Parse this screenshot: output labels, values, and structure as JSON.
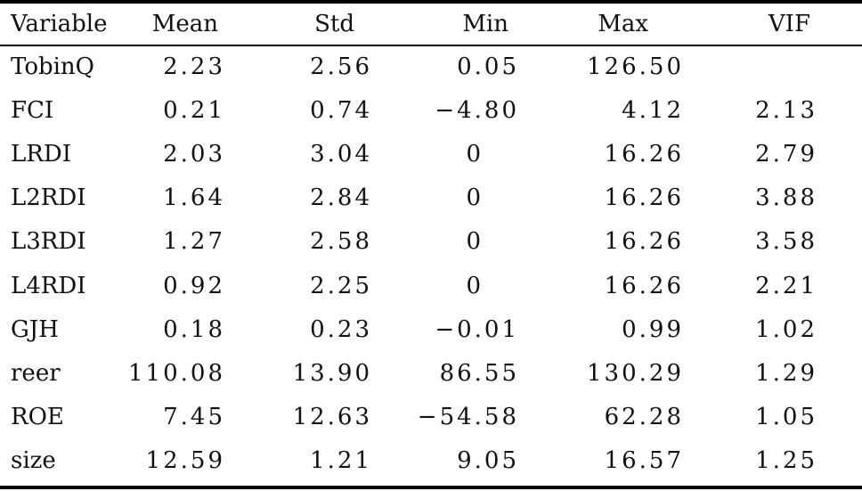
{
  "table": {
    "headers": [
      "Variable",
      "Mean",
      "Std",
      "Min",
      "Max",
      "VIF"
    ],
    "rows": [
      {
        "variable": "TobinQ",
        "mean": "2.23",
        "std": "2.56",
        "min": "0.05",
        "max": "126.50",
        "vif": ""
      },
      {
        "variable": "FCI",
        "mean": "0.21",
        "std": "0.74",
        "min": "−4.80",
        "max": "4.12",
        "vif": "2.13"
      },
      {
        "variable": "LRDI",
        "mean": "2.03",
        "std": "3.04",
        "min": "0",
        "max": "16.26",
        "vif": "2.79"
      },
      {
        "variable": "L2RDI",
        "mean": "1.64",
        "std": "2.84",
        "min": "0",
        "max": "16.26",
        "vif": "3.88"
      },
      {
        "variable": "L3RDI",
        "mean": "1.27",
        "std": "2.58",
        "min": "0",
        "max": "16.26",
        "vif": "3.58"
      },
      {
        "variable": "L4RDI",
        "mean": "0.92",
        "std": "2.25",
        "min": "0",
        "max": "16.26",
        "vif": "2.21"
      },
      {
        "variable": "GJH",
        "mean": "0.18",
        "std": "0.23",
        "min": "−0.01",
        "max": "0.99",
        "vif": "1.02"
      },
      {
        "variable": "reer",
        "mean": "110.08",
        "std": "13.90",
        "min": "86.55",
        "max": "130.29",
        "vif": "1.29"
      },
      {
        "variable": "ROE",
        "mean": "7.45",
        "std": "12.63",
        "min": "−54.58",
        "max": "62.28",
        "vif": "1.05"
      },
      {
        "variable": "size",
        "mean": "12.59",
        "std": "1.21",
        "min": "9.05",
        "max": "16.57",
        "vif": "1.25"
      }
    ]
  }
}
